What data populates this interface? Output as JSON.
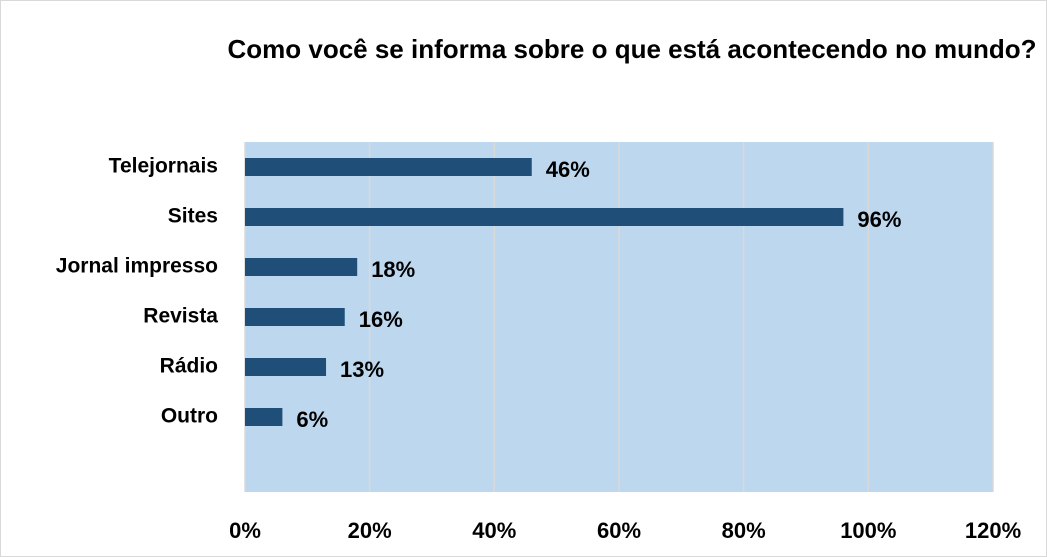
{
  "chart_data": {
    "type": "bar",
    "orientation": "horizontal",
    "title": "Como você se informa sobre o que está acontecendo no mundo?",
    "categories": [
      "Telejornais",
      "Sites",
      "Jornal impresso",
      "Revista",
      "Rádio",
      "Outro"
    ],
    "values": [
      46,
      96,
      18,
      16,
      13,
      6
    ],
    "value_labels": [
      "46%",
      "96%",
      "18%",
      "16%",
      "13%",
      "6%"
    ],
    "color": "#1f4e79",
    "xlim": [
      0,
      120
    ],
    "xticks": [
      {
        "value": 0,
        "label": "0%"
      },
      {
        "value": 20,
        "label": "20%"
      },
      {
        "value": 40,
        "label": "40%"
      },
      {
        "value": 60,
        "label": "60%"
      },
      {
        "value": 80,
        "label": "80%"
      },
      {
        "value": 100,
        "label": "100%"
      },
      {
        "value": 120,
        "label": "120%"
      }
    ],
    "grid": true
  }
}
